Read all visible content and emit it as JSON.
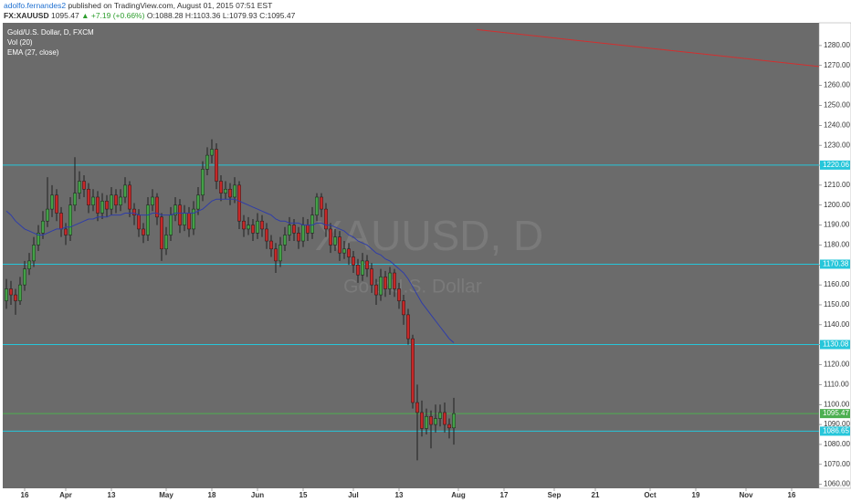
{
  "chart_data": {
    "type": "candlestick",
    "header": {
      "author": "adolfo.fernandes2",
      "published": "published on TradingView.com, August 01, 2015 07:51 EST",
      "symbol": "FX:XAUUSD",
      "price": "1095.47",
      "change": "▲ +7.19 (+0.66%)",
      "open": "O:1088.28",
      "high": "H:1103.36",
      "low": "L:1079.93",
      "close": "C:1095.47"
    },
    "legend": [
      "Gold/U.S. Dollar, D, FXCM",
      "Vol (20)"
    ],
    "watermark": "XAUUSD, D",
    "watermark_sub": "Gold/U.S. Dollar",
    "up_color": "#43a047",
    "down_color": "#c62828",
    "open": [
      1152,
      1158,
      1155,
      1152,
      1160,
      1168,
      1172,
      1180,
      1186,
      1192,
      1198,
      1205,
      1196,
      1188,
      1185,
      1200,
      1206,
      1212,
      1208,
      1200,
      1204,
      1196,
      1202,
      1198,
      1205,
      1200,
      1204,
      1210,
      1198,
      1195,
      1188,
      1185,
      1200,
      1204,
      1194,
      1178,
      1185,
      1195,
      1200,
      1190,
      1196,
      1188,
      1198,
      1205,
      1218,
      1225,
      1228,
      1212,
      1206,
      1208,
      1204,
      1210,
      1192,
      1188,
      1190,
      1186,
      1192,
      1188,
      1182,
      1178,
      1172,
      1180,
      1185,
      1190,
      1186,
      1182,
      1190,
      1186,
      1195,
      1204,
      1198,
      1188,
      1180,
      1184,
      1176,
      1178,
      1174,
      1170,
      1165,
      1172,
      1168,
      1160,
      1155,
      1164,
      1158,
      1166,
      1158,
      1152,
      1145,
      1133,
      1101,
      1096,
      1088,
      1094,
      1090,
      1093,
      1096,
      1090,
      1088.28
    ],
    "high": [
      1163,
      1162,
      1158,
      1164,
      1172,
      1176,
      1184,
      1190,
      1197,
      1214,
      1210,
      1208,
      1199,
      1191,
      1204,
      1224,
      1217,
      1215,
      1211,
      1208,
      1207,
      1206,
      1205,
      1209,
      1208,
      1208,
      1214,
      1212,
      1201,
      1198,
      1191,
      1204,
      1208,
      1206,
      1196,
      1189,
      1199,
      1204,
      1203,
      1200,
      1199,
      1202,
      1209,
      1222,
      1229,
      1233,
      1231,
      1215,
      1212,
      1211,
      1214,
      1212,
      1195,
      1194,
      1193,
      1196,
      1195,
      1191,
      1185,
      1181,
      1184,
      1189,
      1194,
      1193,
      1189,
      1194,
      1193,
      1199,
      1206,
      1206,
      1201,
      1191,
      1188,
      1187,
      1182,
      1181,
      1177,
      1173,
      1176,
      1175,
      1171,
      1163,
      1168,
      1167,
      1169,
      1168,
      1161,
      1155,
      1148,
      1135,
      1110,
      1102,
      1098,
      1097,
      1100,
      1100,
      1101,
      1093,
      1103.36
    ],
    "low": [
      1148,
      1150,
      1145,
      1150,
      1157,
      1165,
      1169,
      1177,
      1183,
      1189,
      1194,
      1192,
      1184,
      1180,
      1182,
      1197,
      1203,
      1204,
      1196,
      1197,
      1192,
      1193,
      1194,
      1195,
      1196,
      1197,
      1201,
      1194,
      1190,
      1184,
      1181,
      1182,
      1197,
      1190,
      1172,
      1175,
      1182,
      1192,
      1186,
      1187,
      1184,
      1185,
      1195,
      1202,
      1215,
      1221,
      1208,
      1202,
      1203,
      1200,
      1201,
      1188,
      1184,
      1185,
      1182,
      1183,
      1184,
      1178,
      1174,
      1166,
      1169,
      1177,
      1182,
      1182,
      1178,
      1179,
      1182,
      1183,
      1192,
      1194,
      1184,
      1176,
      1177,
      1172,
      1173,
      1170,
      1166,
      1161,
      1162,
      1164,
      1156,
      1150,
      1152,
      1154,
      1155,
      1154,
      1148,
      1140,
      1130,
      1098,
      1072,
      1084,
      1085,
      1078,
      1086,
      1089,
      1086,
      1083,
      1079.93
    ],
    "close": [
      1158,
      1155,
      1152,
      1160,
      1168,
      1172,
      1180,
      1186,
      1192,
      1198,
      1205,
      1196,
      1188,
      1185,
      1200,
      1206,
      1212,
      1208,
      1200,
      1204,
      1196,
      1202,
      1198,
      1205,
      1200,
      1204,
      1210,
      1198,
      1195,
      1188,
      1185,
      1200,
      1204,
      1194,
      1178,
      1185,
      1195,
      1200,
      1190,
      1196,
      1188,
      1198,
      1205,
      1218,
      1225,
      1228,
      1212,
      1206,
      1208,
      1204,
      1210,
      1192,
      1188,
      1190,
      1186,
      1192,
      1188,
      1182,
      1178,
      1172,
      1180,
      1185,
      1190,
      1186,
      1182,
      1190,
      1186,
      1195,
      1204,
      1198,
      1188,
      1180,
      1184,
      1176,
      1178,
      1174,
      1170,
      1165,
      1172,
      1168,
      1160,
      1155,
      1164,
      1158,
      1166,
      1158,
      1152,
      1145,
      1133,
      1101,
      1096,
      1088,
      1094,
      1090,
      1093,
      1096,
      1090,
      1088.28,
      1095.47
    ],
    "ema": {
      "name": "EMA (27, close)",
      "color": "#2f3da8",
      "values": [
        1197,
        1195,
        1192,
        1190,
        1188,
        1187,
        1186,
        1185,
        1185,
        1186,
        1187,
        1188,
        1188,
        1189,
        1189,
        1190,
        1191,
        1192,
        1193,
        1193,
        1194,
        1194,
        1194,
        1195,
        1195,
        1195,
        1196,
        1196,
        1196,
        1195,
        1195,
        1195,
        1196,
        1196,
        1195,
        1195,
        1195,
        1196,
        1196,
        1196,
        1196,
        1196,
        1197,
        1198,
        1200,
        1202,
        1203,
        1203,
        1203,
        1203,
        1203,
        1202,
        1201,
        1200,
        1199,
        1198,
        1197,
        1196,
        1195,
        1193,
        1192,
        1192,
        1191,
        1191,
        1191,
        1190,
        1190,
        1190,
        1191,
        1191,
        1190,
        1190,
        1189,
        1188,
        1187,
        1185,
        1184,
        1182,
        1181,
        1180,
        1178,
        1176,
        1175,
        1173,
        1172,
        1170,
        1168,
        1166,
        1163,
        1159,
        1155,
        1151,
        1148,
        1145,
        1142,
        1139,
        1136,
        1133,
        1131
      ]
    },
    "levels": [
      {
        "value": 1220.06,
        "color": "#26c6da"
      },
      {
        "value": 1170.38,
        "color": "#26c6da"
      },
      {
        "value": 1130.08,
        "color": "#26c6da"
      },
      {
        "value": 1086.65,
        "color": "#26c6da"
      },
      {
        "value": 1095.47,
        "color": "#4caf50"
      }
    ],
    "trend_line": {
      "color": "#d32f2f",
      "x": [
        103,
        178
      ],
      "y": [
        1288,
        1269.5
      ]
    },
    "xlim": [
      -0.8,
      178
    ],
    "ylim": [
      1058,
      1291.4
    ],
    "xticks": [
      {
        "value": 4,
        "label": "16"
      },
      {
        "value": 13,
        "label": "Apr"
      },
      {
        "value": 23,
        "label": "13"
      },
      {
        "value": 35,
        "label": "May"
      },
      {
        "value": 45,
        "label": "18"
      },
      {
        "value": 55,
        "label": "Jun"
      },
      {
        "value": 65,
        "label": "15"
      },
      {
        "value": 76,
        "label": "Jul"
      },
      {
        "value": 86,
        "label": "13"
      },
      {
        "value": 99,
        "label": "Aug"
      },
      {
        "value": 109,
        "label": "17"
      },
      {
        "value": 120,
        "label": "Sep"
      },
      {
        "value": 129,
        "label": "21"
      },
      {
        "value": 141,
        "label": "Oct"
      },
      {
        "value": 151,
        "label": "19"
      },
      {
        "value": 162,
        "label": "Nov"
      },
      {
        "value": 172,
        "label": "16"
      }
    ],
    "yticks": [
      {
        "value": 1060,
        "label": "1060.00"
      },
      {
        "value": 1070,
        "label": "1070.00"
      },
      {
        "value": 1080,
        "label": "1080.00"
      },
      {
        "value": 1090,
        "label": "1090.00"
      },
      {
        "value": 1100,
        "label": "1100.00"
      },
      {
        "value": 1110,
        "label": "1110.00"
      },
      {
        "value": 1120,
        "label": "1120.00"
      },
      {
        "value": 1130,
        "label": "1130.00"
      },
      {
        "value": 1140,
        "label": "1140.00"
      },
      {
        "value": 1150,
        "label": "1150.00"
      },
      {
        "value": 1160,
        "label": "1160.00"
      },
      {
        "value": 1170,
        "label": "1170.00"
      },
      {
        "value": 1180,
        "label": "1180.00"
      },
      {
        "value": 1190,
        "label": "1190.00"
      },
      {
        "value": 1200,
        "label": "1200.00"
      },
      {
        "value": 1210,
        "label": "1210.00"
      },
      {
        "value": 1220,
        "label": "1220.00"
      },
      {
        "value": 1230,
        "label": "1230.00"
      },
      {
        "value": 1240,
        "label": "1240.00"
      },
      {
        "value": 1250,
        "label": "1250.00"
      },
      {
        "value": 1260,
        "label": "1260.00"
      },
      {
        "value": 1270,
        "label": "1270.00"
      },
      {
        "value": 1280,
        "label": "1280.00"
      }
    ]
  }
}
